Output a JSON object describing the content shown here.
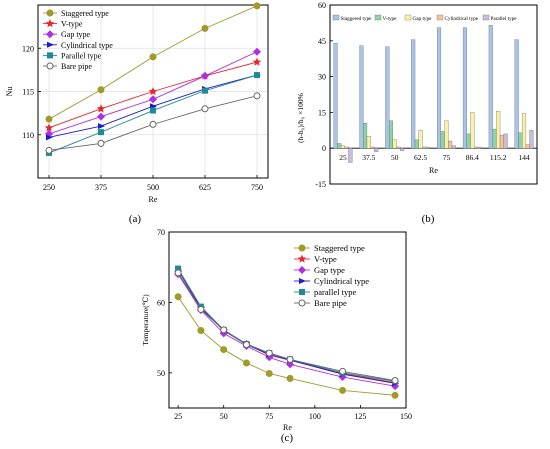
{
  "chart_data": [
    {
      "type": "line",
      "panel_label": "(a)",
      "xlabel": "Re",
      "ylabel": "Nu",
      "x": [
        250,
        375,
        500,
        625,
        750
      ],
      "x_ticks": [
        "250",
        "375",
        "500",
        "625",
        "750"
      ],
      "y_ticks": [
        110,
        115,
        120
      ],
      "ylim": [
        105,
        125
      ],
      "grid": true,
      "legend": "top-left",
      "series": [
        {
          "name": "Staggered type",
          "marker": "circle",
          "color": "#a09a2a",
          "values": [
            111.8,
            115.2,
            119.0,
            122.3,
            124.9
          ]
        },
        {
          "name": "V-type",
          "marker": "star",
          "color": "#e8262d",
          "values": [
            110.8,
            113.0,
            115.0,
            116.8,
            118.4
          ]
        },
        {
          "name": "Gap type",
          "marker": "diamond",
          "color": "#b12ee0",
          "values": [
            110.1,
            112.1,
            114.1,
            116.8,
            119.6
          ]
        },
        {
          "name": "Cylindrical type",
          "marker": "triangle-right",
          "color": "#1c1ccc",
          "values": [
            109.7,
            111.0,
            113.3,
            115.3,
            116.9
          ]
        },
        {
          "name": "Parallel type",
          "marker": "square",
          "color": "#1e8a96",
          "values": [
            107.9,
            110.3,
            112.8,
            115.1,
            116.9
          ]
        },
        {
          "name": "Bare pipe",
          "marker": "open-circle",
          "color": "#666666",
          "values": [
            108.2,
            109.0,
            111.2,
            113.0,
            114.5
          ]
        }
      ]
    },
    {
      "type": "bar",
      "panel_label": "(b)",
      "xlabel": "Re",
      "ylabel": "(h-h₀)/h₀ ×100%",
      "categories": [
        "25",
        "37.5",
        "50",
        "62.5",
        "75",
        "86.4",
        "115.2",
        "144"
      ],
      "y_ticks": [
        -15,
        0,
        15,
        30,
        45,
        60
      ],
      "ylim": [
        -15,
        60
      ],
      "legend": "top",
      "series": [
        {
          "name": "Staggered type",
          "color": "#a9c4ea",
          "values": [
            44,
            43,
            42.5,
            45.5,
            50.5,
            50.5,
            51.5,
            45.5
          ]
        },
        {
          "name": "V-type",
          "color": "#8fd4a4",
          "values": [
            2,
            10.5,
            11.5,
            3.5,
            7,
            6,
            8,
            6.5
          ]
        },
        {
          "name": "Gap type",
          "color": "#f8f2a8",
          "values": [
            1,
            5,
            3.5,
            7.5,
            11.5,
            15,
            15.5,
            14.5
          ]
        },
        {
          "name": "Cylindrical type",
          "color": "#f7c49a",
          "values": [
            0.5,
            0.5,
            0.5,
            0.5,
            3,
            0.5,
            5.5,
            1.5
          ]
        },
        {
          "name": "Parallel type",
          "color": "#cbbcdd",
          "values": [
            -6,
            -1.5,
            -1,
            0.5,
            1,
            0.5,
            6,
            7.5
          ]
        }
      ]
    },
    {
      "type": "line",
      "panel_label": "(c)",
      "xlabel": "Re",
      "ylabel": "Temperature(℃)",
      "x": [
        25,
        37.5,
        50,
        62.5,
        75,
        86.4,
        115.2,
        144
      ],
      "x_ticks": [
        25,
        50,
        75,
        100,
        125,
        150
      ],
      "xlim": [
        20,
        150
      ],
      "y_ticks": [
        50,
        60,
        70
      ],
      "ylim": [
        45,
        70
      ],
      "legend": "top-right",
      "series": [
        {
          "name": "Staggered type",
          "marker": "circle",
          "color": "#a09a2a",
          "values": [
            60.8,
            56.0,
            53.3,
            51.4,
            49.9,
            49.2,
            47.5,
            46.8
          ]
        },
        {
          "name": "V-type",
          "marker": "star",
          "color": "#e8262d",
          "values": [
            64.2,
            59.2,
            56.0,
            54.1,
            52.5,
            51.8,
            49.9,
            48.6
          ]
        },
        {
          "name": "Gap type",
          "marker": "diamond",
          "color": "#b12ee0",
          "values": [
            64.0,
            58.9,
            55.6,
            53.8,
            52.2,
            51.2,
            49.4,
            48.1
          ]
        },
        {
          "name": "Cylindrical type",
          "marker": "triangle-right",
          "color": "#1c1ccc",
          "values": [
            64.6,
            59.3,
            56.0,
            54.0,
            52.6,
            51.8,
            49.8,
            48.5
          ]
        },
        {
          "name": "parallel type",
          "marker": "square",
          "color": "#1e8a96",
          "values": [
            64.8,
            59.4,
            56.1,
            54.1,
            52.8,
            51.9,
            50.0,
            48.8
          ]
        },
        {
          "name": "Bare pipe",
          "marker": "open-circle",
          "color": "#666666",
          "values": [
            64.2,
            59.0,
            56.1,
            54.0,
            52.8,
            51.9,
            50.2,
            48.9
          ]
        }
      ]
    }
  ]
}
